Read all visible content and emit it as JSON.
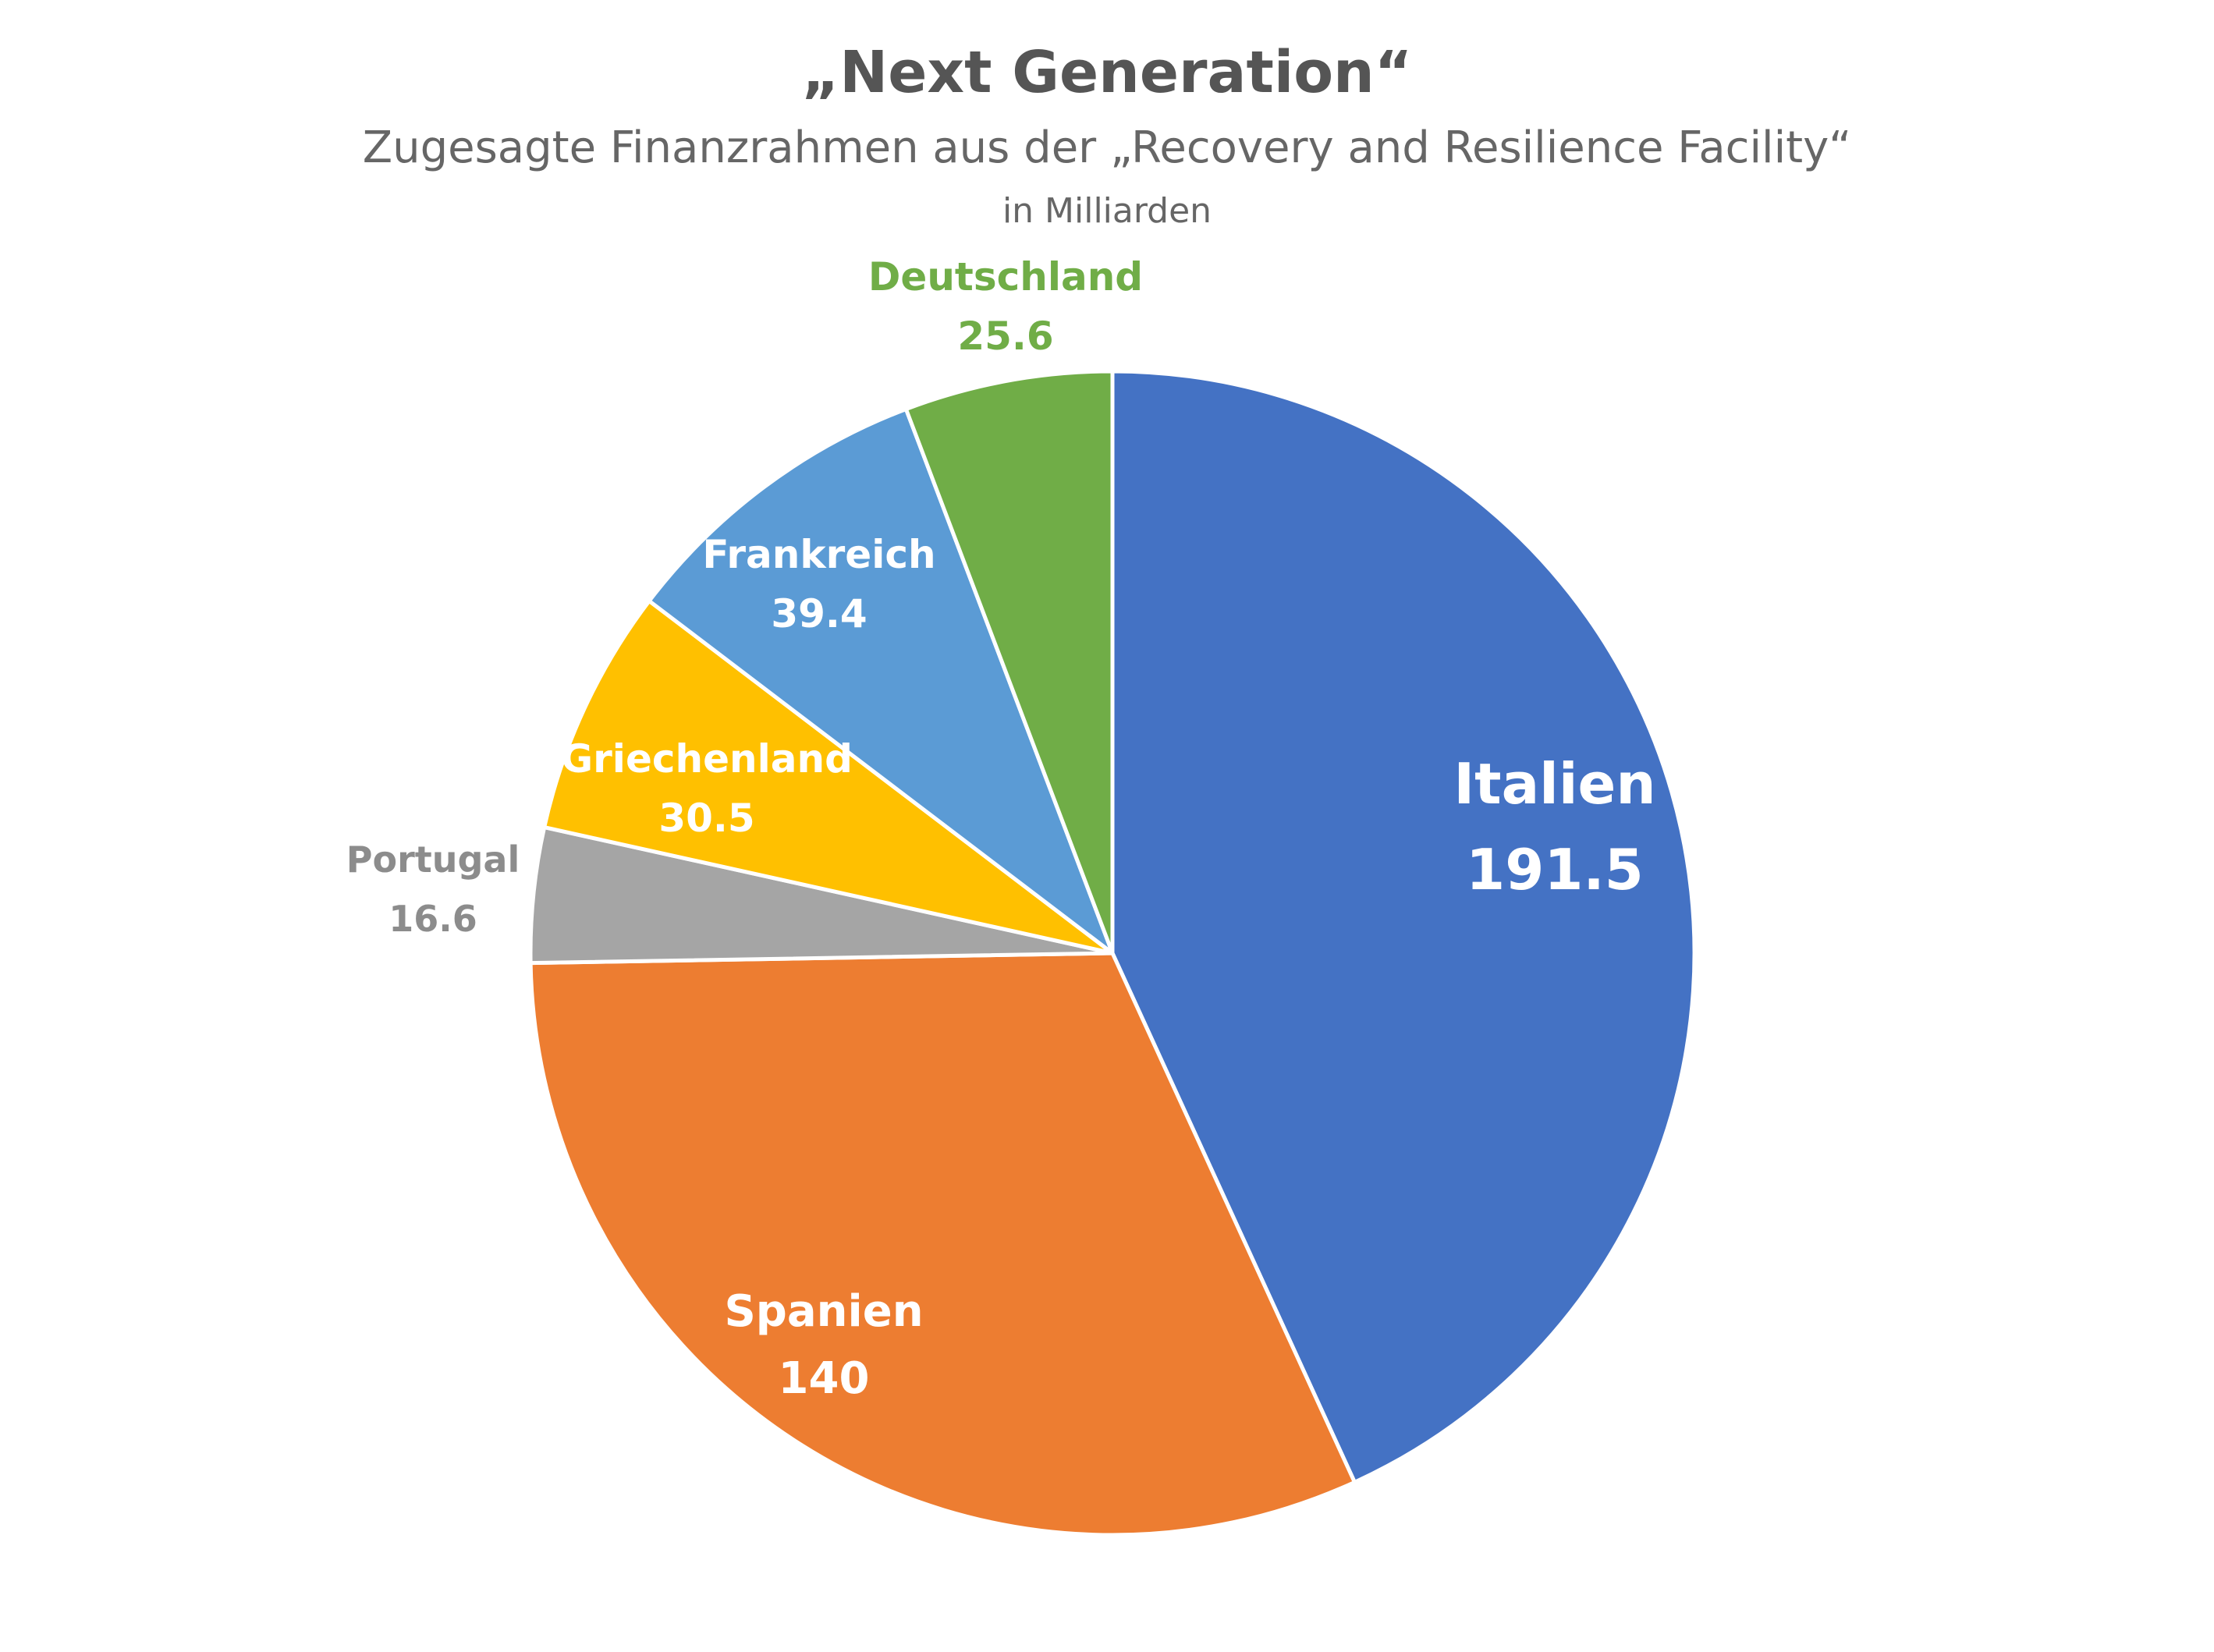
{
  "chart_data": {
    "type": "pie",
    "title": "„Next Generation“",
    "subtitle": "Zugesagte Finanzrahmen aus der „Recovery and Resilience Facility“",
    "unit": "in Milliarden",
    "slices": [
      {
        "name": "Italien",
        "value": 191.5,
        "value_label": "191.5",
        "color": "#4472C4",
        "label_color": "#ffffff",
        "label_position": "inside"
      },
      {
        "name": "Spanien",
        "value": 140,
        "value_label": "140",
        "color": "#ED7D31",
        "label_color": "#ffffff",
        "label_position": "inside"
      },
      {
        "name": "Portugal",
        "value": 16.6,
        "value_label": "16.6",
        "color": "#A5A5A5",
        "label_color": "#8C8C8C",
        "label_position": "outside"
      },
      {
        "name": "Griechenland",
        "value": 30.5,
        "value_label": "30.5",
        "color": "#FFC000",
        "label_color": "#ffffff",
        "label_position": "inside"
      },
      {
        "name": "Frankreich",
        "value": 39.4,
        "value_label": "39.4",
        "color": "#5B9BD5",
        "label_color": "#ffffff",
        "label_position": "inside"
      },
      {
        "name": "Deutschland",
        "value": 25.6,
        "value_label": "25.6",
        "color": "#70AD47",
        "label_color": "#70AD47",
        "label_position": "outside"
      }
    ],
    "start_angle": "12 o'clock",
    "direction": "clockwise",
    "legend": "none"
  }
}
